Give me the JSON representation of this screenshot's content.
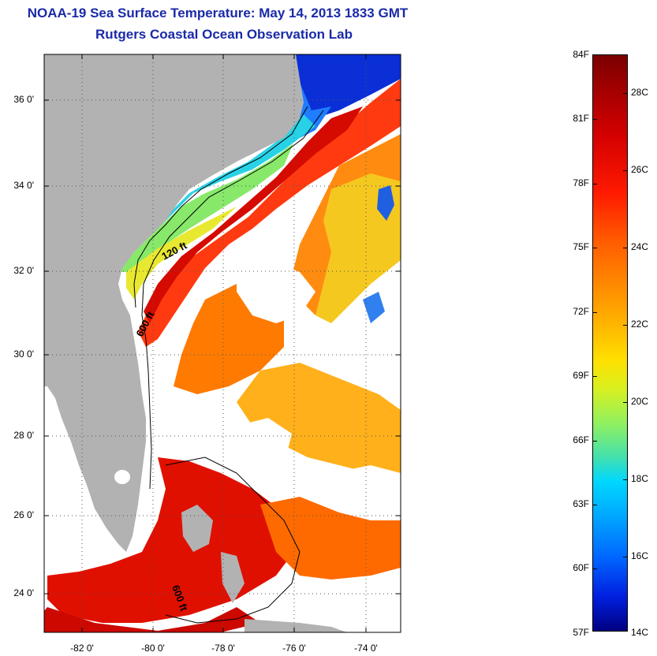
{
  "header": {
    "title": "NOAA-19 Sea Surface Temperature:  May 14, 2013 1833 GMT",
    "subtitle": "Rutgers Coastal Ocean Observation Lab"
  },
  "map": {
    "lat_labels": [
      "36 0'",
      "34 0'",
      "32 0'",
      "30 0'",
      "28 0'",
      "26 0'",
      "24 0'"
    ],
    "lon_labels": [
      "-82 0'",
      "-80 0'",
      "-78 0'",
      "-76 0'",
      "-74 0'"
    ],
    "contour_labels": [
      "120 ft",
      "600 ft",
      "600 ft"
    ],
    "land_color": "#b2b2b2",
    "cloud_color": "#ffffff"
  },
  "colorbar": {
    "fahrenheit": [
      "84F",
      "81F",
      "78F",
      "75F",
      "72F",
      "69F",
      "66F",
      "63F",
      "60F",
      "57F"
    ],
    "celsius": [
      "28C",
      "26C",
      "24C",
      "22C",
      "20C",
      "18C",
      "16C",
      "14C"
    ]
  }
}
